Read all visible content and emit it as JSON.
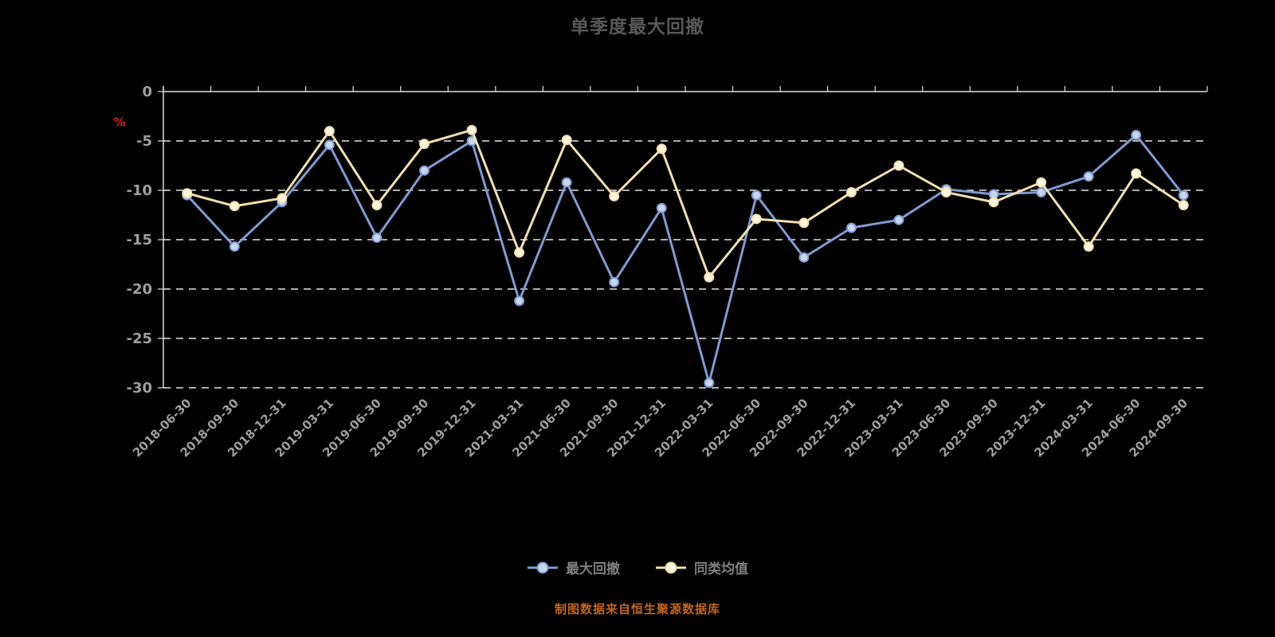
{
  "title": "单季度最大回撤",
  "footer": "制图数据来自恒生聚源数据库",
  "colors": {
    "background": "#000000",
    "title": "#585858",
    "axis": "#e0e0e0",
    "grid": "#ffffff",
    "tick_label": "#9f9f9f",
    "unit": "#e01b1b",
    "legend_label": "#7f7f7f",
    "footer": "#c2661c",
    "series": [
      {
        "line": "#7e9bd2",
        "marker_fill": "#c9d7ee"
      },
      {
        "line": "#f2dfae",
        "marker_fill": "#fdf6e0"
      }
    ]
  },
  "chart_data": {
    "type": "line",
    "title": "单季度最大回撤",
    "x": [
      "2018-06-30",
      "2018-09-30",
      "2018-12-31",
      "2019-03-31",
      "2019-06-30",
      "2019-09-30",
      "2019-12-31",
      "2021-03-31",
      "2021-06-30",
      "2021-09-30",
      "2021-12-31",
      "2022-03-31",
      "2022-06-30",
      "2022-09-30",
      "2022-12-31",
      "2023-03-31",
      "2023-06-30",
      "2023-09-30",
      "2023-12-31",
      "2024-03-31",
      "2024-06-30",
      "2024-09-30"
    ],
    "series": [
      {
        "name": "最大回撤",
        "slug": "max-drawdown",
        "values": [
          -10.5,
          -15.7,
          -11.2,
          -5.4,
          -14.8,
          -8.0,
          -5.0,
          -21.2,
          -9.2,
          -19.3,
          -11.8,
          -29.5,
          -10.5,
          -16.8,
          -13.8,
          -13.0,
          -9.9,
          -10.4,
          -10.2,
          -8.6,
          -4.4,
          -10.5
        ]
      },
      {
        "name": "同类均值",
        "slug": "category-average",
        "values": [
          -10.3,
          -11.6,
          -10.8,
          -4.0,
          -11.5,
          -5.3,
          -3.9,
          -16.3,
          -4.9,
          -10.6,
          -5.8,
          -18.8,
          -12.9,
          -13.3,
          -10.2,
          -7.5,
          -10.2,
          -11.2,
          -9.2,
          -15.7,
          -8.3,
          -11.5
        ]
      }
    ],
    "xlabel": "",
    "ylabel": "%",
    "ylim": [
      -30,
      0
    ],
    "yticks": [
      0,
      -5,
      -10,
      -15,
      -20,
      -25,
      -30
    ],
    "grid": true,
    "grid_style": "dashed",
    "legend_position": "bottom"
  }
}
